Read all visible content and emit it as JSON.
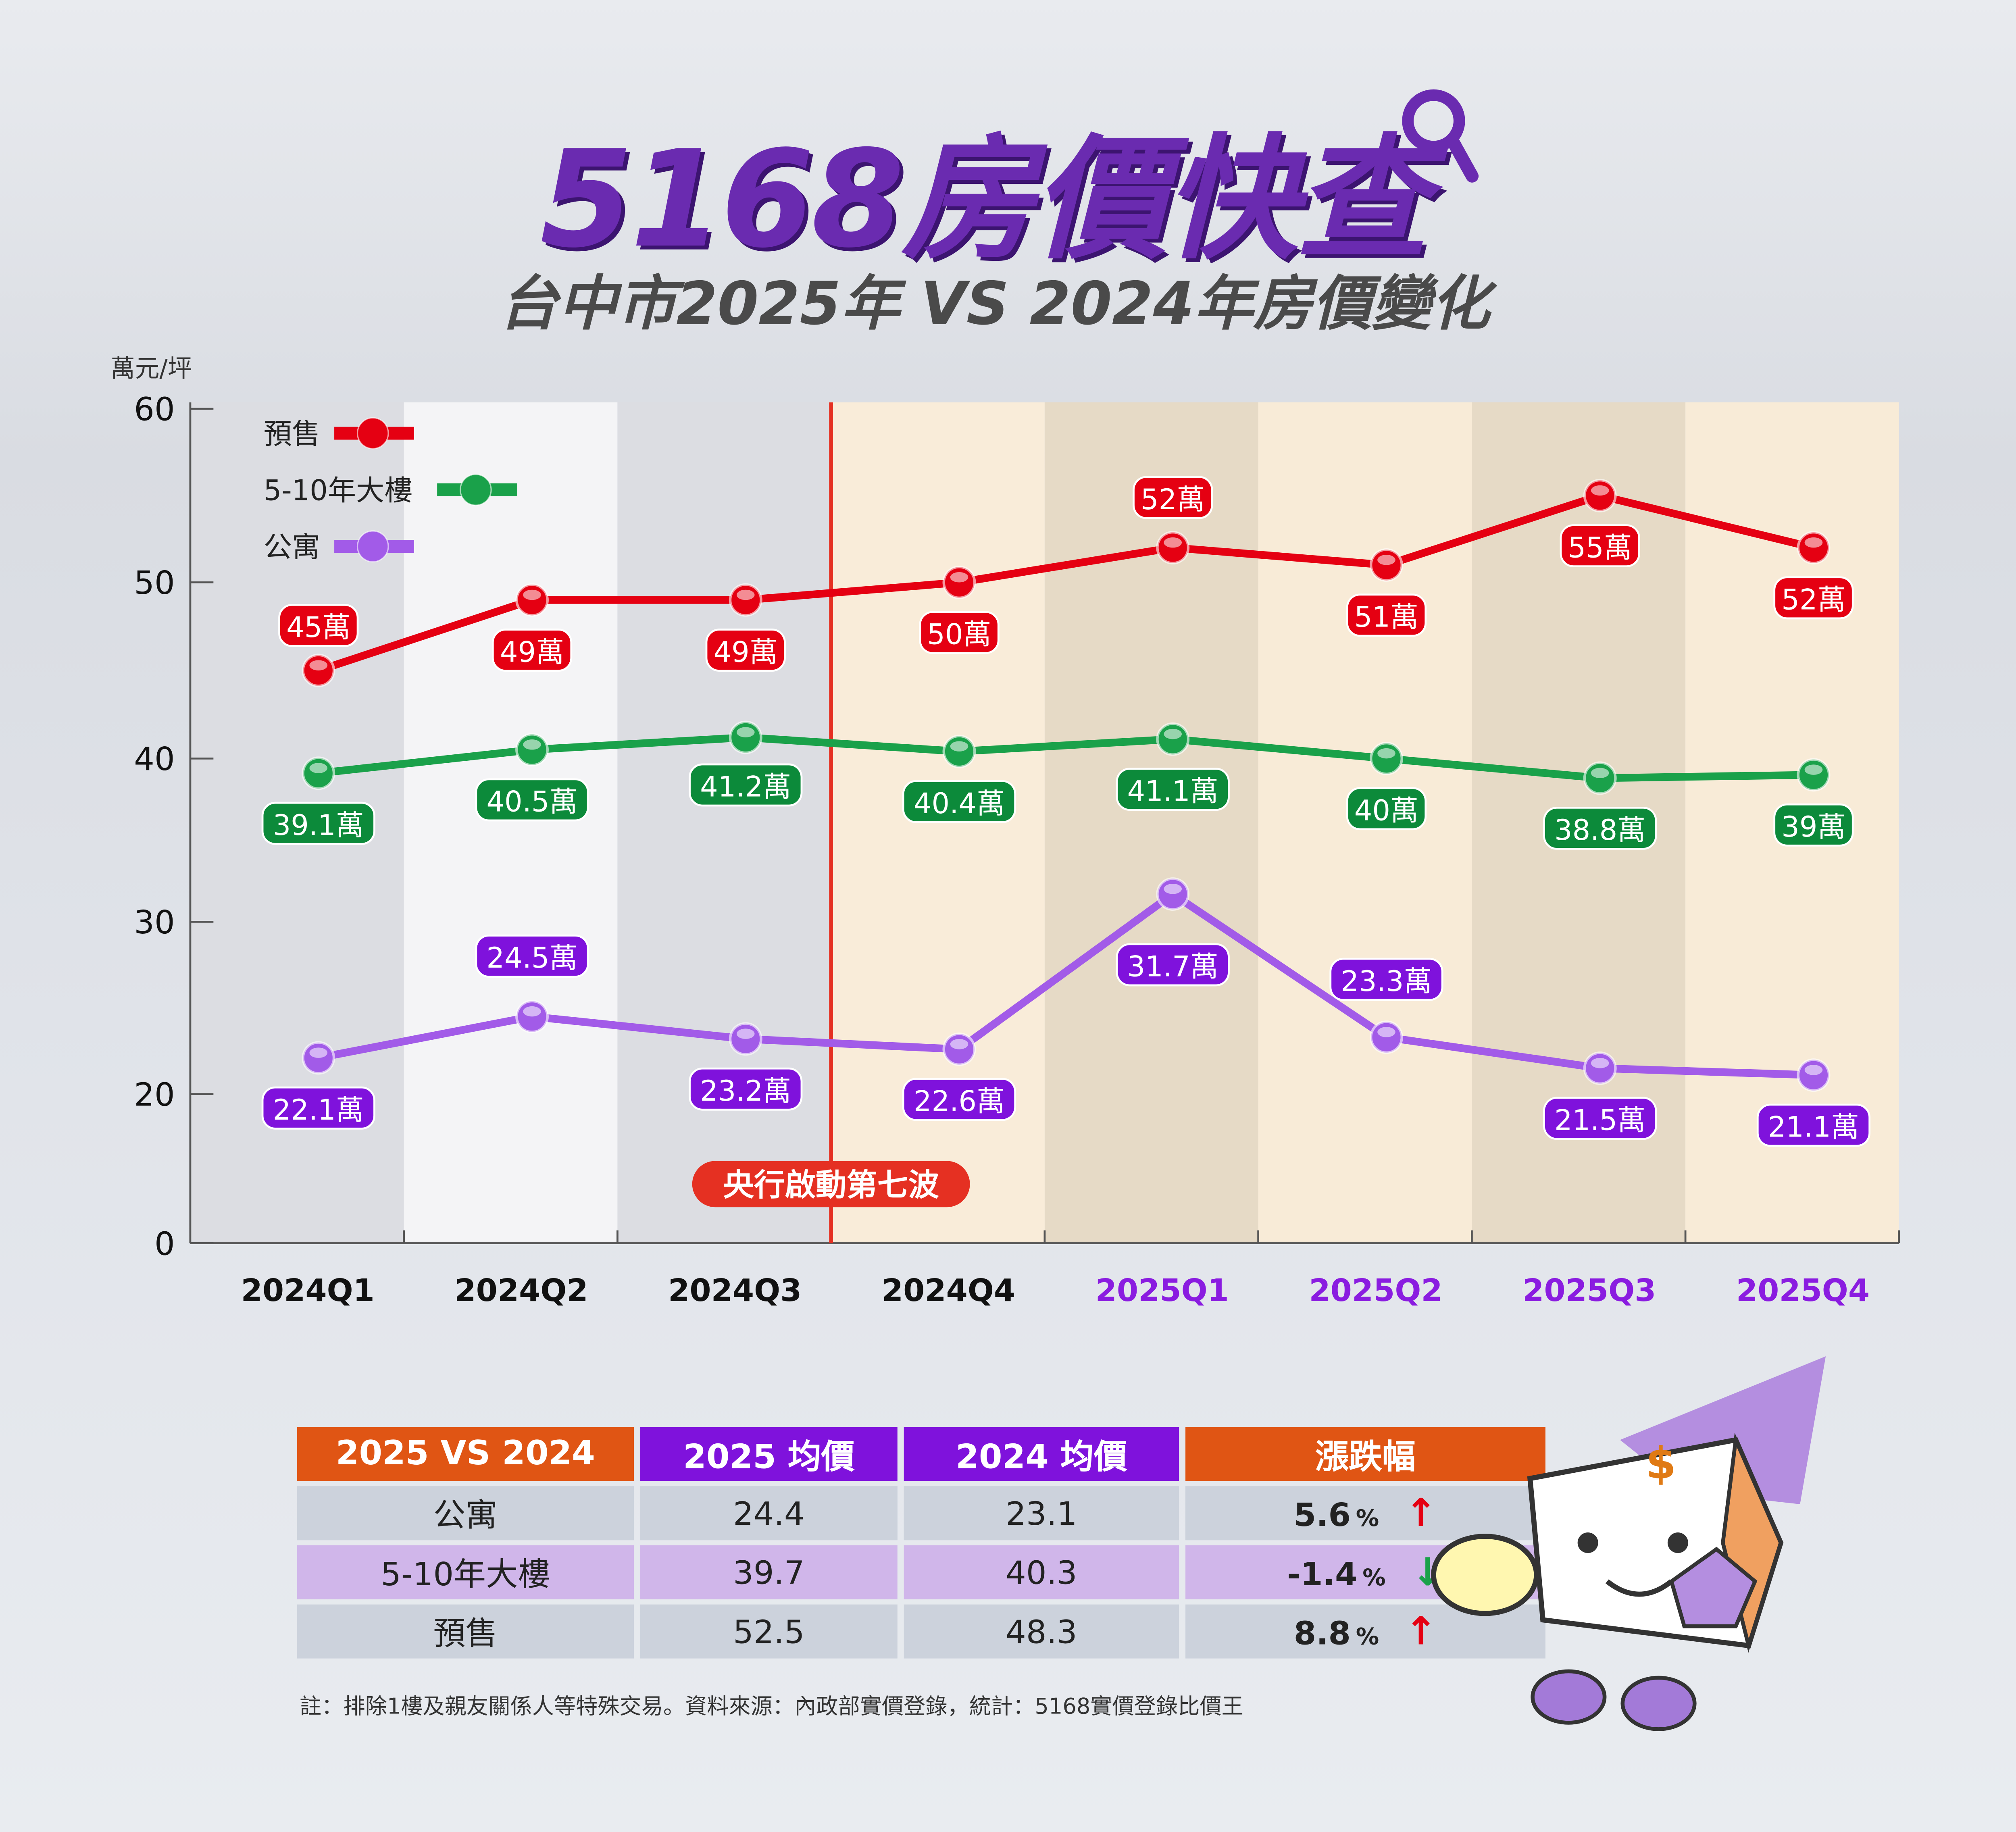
{
  "header": {
    "brand": "5168房價快查",
    "subtitle": "台中市2025年 VS 2024年房價變化"
  },
  "chart_data": {
    "type": "line",
    "title": "台中市2025年 VS 2024年房價變化",
    "ylabel": "萬元/坪",
    "yticks": [
      0,
      20,
      30,
      40,
      50,
      60
    ],
    "ylim": [
      0,
      60
    ],
    "categories": [
      "2024Q1",
      "2024Q2",
      "2024Q3",
      "2024Q4",
      "2025Q1",
      "2025Q2",
      "2025Q3",
      "2025Q4"
    ],
    "legend_position": "top-left",
    "series": [
      {
        "name": "預售",
        "color": "#e50012",
        "values": [
          45,
          49,
          49,
          50,
          52,
          51,
          55,
          52
        ],
        "labels": [
          "45萬",
          "49萬",
          "49萬",
          "50萬",
          "52萬",
          "51萬",
          "55萬",
          "52萬"
        ]
      },
      {
        "name": "5-10年大樓",
        "color": "#1aa14a",
        "values": [
          39.1,
          40.5,
          41.2,
          40.4,
          41.1,
          40,
          38.8,
          39
        ],
        "labels": [
          "39.1萬",
          "40.5萬",
          "41.2萬",
          "40.4萬",
          "41.1萬",
          "40萬",
          "38.8萬",
          "39萬"
        ]
      },
      {
        "name": "公寓",
        "color": "#a25be8",
        "values": [
          22.1,
          24.5,
          23.2,
          22.6,
          31.7,
          23.3,
          21.5,
          21.1
        ],
        "labels": [
          "22.1萬",
          "24.5萬",
          "23.2萬",
          "22.6萬",
          "31.7萬",
          "23.3萬",
          "21.5萬",
          "21.1萬"
        ]
      }
    ],
    "annotation": {
      "text": "央行啟動第七波",
      "between": [
        "2024Q3",
        "2024Q4"
      ],
      "color": "#e53022"
    },
    "category_colors": {
      "2024": "#111111",
      "2025": "#8a1ce0"
    }
  },
  "table": {
    "headers": [
      "2025 VS 2024",
      "2025 均價",
      "2024 均價",
      "漲跌幅"
    ],
    "rows": [
      {
        "type": "公寓",
        "y2025": "24.4",
        "y2024": "23.1",
        "change": "5.6",
        "unit": "%",
        "direction": "up"
      },
      {
        "type": "5-10年大樓",
        "y2025": "39.7",
        "y2024": "40.3",
        "change": "-1.4",
        "unit": "%",
        "direction": "down"
      },
      {
        "type": "預售",
        "y2025": "52.5",
        "y2024": "48.3",
        "change": "8.8",
        "unit": "%",
        "direction": "up"
      }
    ],
    "colors": {
      "up": "#e50012",
      "down": "#1aa14a"
    }
  },
  "note": "註：排除1樓及親友關係人等特殊交易。資料來源：內政部實價登錄，統計：5168實價登錄比價王"
}
